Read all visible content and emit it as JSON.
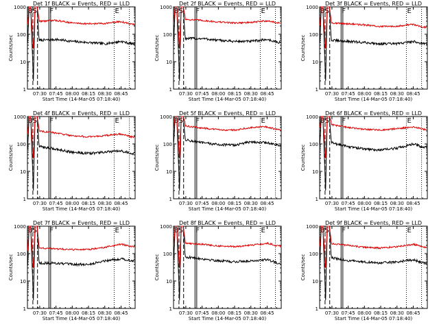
{
  "start_time_label": "Start Time (14-Mar-05 07:18:40)",
  "ylabel": "Counts/sec",
  "title_suffix": "BLACK = Events, RED = LLD",
  "x_ticks": [
    "07:30",
    "07:45",
    "08:00",
    "08:15",
    "08:30",
    "08:45"
  ],
  "y_ticks": [
    "1",
    "10",
    "100",
    "1000"
  ],
  "markers": [
    "BS",
    "F",
    "E"
  ],
  "colors": {
    "events": "#000000",
    "lld": "#e00000",
    "axes": "#000000",
    "background": "#ffffff"
  },
  "chart_data": [
    {
      "type": "line",
      "title": "Det 1f",
      "ylog": true,
      "ylim": [
        1,
        1000
      ],
      "xlim": [
        "07:18:40",
        "08:58:00"
      ],
      "x": [
        "07:30",
        "07:45",
        "08:00",
        "08:15",
        "08:30",
        "08:45",
        "08:55"
      ],
      "series": [
        {
          "name": "BLACK = Events",
          "values": [
            60,
            65,
            55,
            50,
            45,
            55,
            45
          ]
        },
        {
          "name": "RED = LLD",
          "values": [
            300,
            320,
            260,
            240,
            250,
            290,
            230
          ]
        }
      ]
    },
    {
      "type": "line",
      "title": "Det 2f",
      "ylog": true,
      "ylim": [
        1,
        1000
      ],
      "xlim": [
        "07:18:40",
        "08:58:00"
      ],
      "x": [
        "07:30",
        "07:45",
        "08:00",
        "08:15",
        "08:30",
        "08:45",
        "08:55"
      ],
      "series": [
        {
          "name": "BLACK = Events",
          "values": [
            70,
            70,
            60,
            55,
            55,
            65,
            50
          ]
        },
        {
          "name": "RED = LLD",
          "values": [
            350,
            320,
            280,
            260,
            270,
            310,
            260
          ]
        }
      ]
    },
    {
      "type": "line",
      "title": "Det 3f",
      "ylog": true,
      "ylim": [
        1,
        1000
      ],
      "xlim": [
        "07:18:40",
        "08:58:00"
      ],
      "x": [
        "07:30",
        "07:45",
        "08:00",
        "08:15",
        "08:30",
        "08:45",
        "08:55"
      ],
      "series": [
        {
          "name": "BLACK = Events",
          "values": [
            60,
            55,
            50,
            45,
            45,
            55,
            45
          ]
        },
        {
          "name": "RED = LLD",
          "values": [
            260,
            240,
            220,
            190,
            200,
            230,
            180
          ]
        }
      ]
    },
    {
      "type": "line",
      "title": "Det 4f",
      "ylog": true,
      "ylim": [
        1,
        1000
      ],
      "xlim": [
        "07:18:40",
        "08:58:00"
      ],
      "x": [
        "07:30",
        "07:45",
        "08:00",
        "08:15",
        "08:30",
        "08:45",
        "08:55"
      ],
      "series": [
        {
          "name": "BLACK = Events",
          "values": [
            80,
            65,
            50,
            45,
            50,
            55,
            45
          ]
        },
        {
          "name": "RED = LLD",
          "values": [
            300,
            250,
            200,
            180,
            200,
            230,
            180
          ]
        }
      ]
    },
    {
      "type": "line",
      "title": "Det 5f",
      "ylog": true,
      "ylim": [
        1,
        1000
      ],
      "xlim": [
        "07:18:40",
        "08:58:00"
      ],
      "x": [
        "07:30",
        "07:45",
        "08:00",
        "08:15",
        "08:30",
        "08:45",
        "08:55"
      ],
      "series": [
        {
          "name": "BLACK = Events",
          "values": [
            140,
            110,
            95,
            90,
            120,
            110,
            90
          ]
        },
        {
          "name": "RED = LLD",
          "values": [
            450,
            380,
            330,
            320,
            400,
            420,
            330
          ]
        }
      ]
    },
    {
      "type": "line",
      "title": "Det 6f",
      "ylog": true,
      "ylim": [
        1,
        1000
      ],
      "xlim": [
        "07:18:40",
        "08:58:00"
      ],
      "x": [
        "07:30",
        "07:45",
        "08:00",
        "08:15",
        "08:30",
        "08:45",
        "08:55"
      ],
      "series": [
        {
          "name": "BLACK = Events",
          "values": [
            110,
            80,
            65,
            60,
            70,
            100,
            75
          ]
        },
        {
          "name": "RED = LLD",
          "values": [
            500,
            400,
            340,
            320,
            360,
            420,
            340
          ]
        }
      ]
    },
    {
      "type": "line",
      "title": "Det 7f",
      "ylog": true,
      "ylim": [
        1,
        1000
      ],
      "xlim": [
        "07:18:40",
        "08:58:00"
      ],
      "x": [
        "07:30",
        "07:45",
        "08:00",
        "08:15",
        "08:30",
        "08:45",
        "08:55"
      ],
      "series": [
        {
          "name": "BLACK = Events",
          "values": [
            45,
            45,
            40,
            40,
            55,
            65,
            55
          ]
        },
        {
          "name": "RED = LLD",
          "values": [
            160,
            150,
            140,
            140,
            170,
            220,
            180
          ]
        }
      ]
    },
    {
      "type": "line",
      "title": "Det 8f",
      "ylog": true,
      "ylim": [
        1,
        1000
      ],
      "xlim": [
        "07:18:40",
        "08:58:00"
      ],
      "x": [
        "07:30",
        "07:45",
        "08:00",
        "08:15",
        "08:30",
        "08:45",
        "08:55"
      ],
      "series": [
        {
          "name": "BLACK = Events",
          "values": [
            75,
            65,
            55,
            50,
            55,
            60,
            45
          ]
        },
        {
          "name": "RED = LLD",
          "values": [
            240,
            220,
            190,
            180,
            200,
            240,
            190
          ]
        }
      ]
    },
    {
      "type": "line",
      "title": "Det 9f",
      "ylog": true,
      "ylim": [
        1,
        1000
      ],
      "xlim": [
        "07:18:40",
        "08:58:00"
      ],
      "x": [
        "07:30",
        "07:45",
        "08:00",
        "08:15",
        "08:30",
        "08:45",
        "08:55"
      ],
      "series": [
        {
          "name": "BLACK = Events",
          "values": [
            70,
            55,
            50,
            45,
            50,
            60,
            45
          ]
        },
        {
          "name": "RED = LLD",
          "values": [
            230,
            200,
            170,
            160,
            180,
            220,
            170
          ]
        }
      ]
    }
  ]
}
